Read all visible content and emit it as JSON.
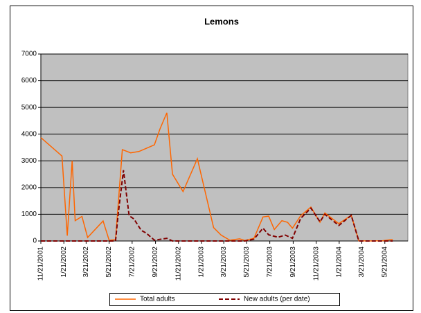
{
  "chart_data": {
    "type": "line",
    "title": "Lemons",
    "series": [
      {
        "name": "Total adults",
        "color": "#ff6600",
        "dash": false,
        "x": [
          "11/21/2001",
          "1/16/2002",
          "1/30/2002",
          "2/12/2002",
          "2/20/2002",
          "3/10/2002",
          "3/25/2002",
          "5/5/2002",
          "5/21/2002",
          "6/7/2002",
          "6/25/2002",
          "7/17/2002",
          "8/8/2002",
          "9/18/2002",
          "10/3/2002",
          "10/21/2002",
          "11/5/2002",
          "12/3/2002",
          "1/10/2003",
          "2/22/2003",
          "3/14/2003",
          "4/6/2003",
          "5/2/2003",
          "5/16/2003",
          "6/9/2003",
          "7/3/2003",
          "7/18/2003",
          "8/2/2003",
          "8/22/2003",
          "9/6/2003",
          "9/19/2003",
          "10/11/2003",
          "11/7/2003",
          "12/1/2003",
          "12/14/2003",
          "1/20/2004",
          "2/22/2004",
          "3/13/2004",
          "4/8/2004",
          "5/15/2004",
          "6/11/2004"
        ],
        "values": [
          3870,
          3180,
          200,
          3000,
          760,
          920,
          130,
          750,
          30,
          50,
          3420,
          3300,
          3350,
          3600,
          4200,
          4800,
          2500,
          1850,
          3080,
          500,
          220,
          30,
          80,
          20,
          100,
          900,
          930,
          430,
          760,
          700,
          480,
          950,
          1270,
          700,
          1050,
          650,
          960,
          10,
          0,
          10,
          60
        ]
      },
      {
        "name": "New adults (per date)",
        "color": "#800000",
        "dash": true,
        "x": [
          "11/21/2001",
          "1/16/2002",
          "5/21/2002",
          "6/7/2002",
          "6/14/2002",
          "6/28/2002",
          "7/13/2002",
          "7/26/2002",
          "8/14/2002",
          "8/27/2002",
          "9/18/2002",
          "10/21/2002",
          "11/5/2002",
          "5/16/2003",
          "6/9/2003",
          "7/3/2003",
          "7/18/2003",
          "8/12/2003",
          "8/31/2003",
          "9/19/2003",
          "10/11/2003",
          "11/7/2003",
          "12/1/2003",
          "12/14/2003",
          "1/20/2004",
          "2/22/2004",
          "3/13/2004",
          "6/11/2004"
        ],
        "values": [
          0,
          0,
          0,
          0,
          1000,
          2650,
          950,
          820,
          400,
          300,
          30,
          100,
          0,
          0,
          70,
          480,
          230,
          140,
          220,
          100,
          850,
          1230,
          720,
          1000,
          580,
          960,
          0,
          0
        ]
      }
    ],
    "xlim": [
      "11/21/2001",
      "7/21/2004"
    ],
    "xticks": [
      "11/21/2001",
      "1/21/2002",
      "3/21/2002",
      "5/21/2002",
      "7/21/2002",
      "9/21/2002",
      "11/21/2002",
      "1/21/2003",
      "3/21/2003",
      "5/21/2003",
      "7/21/2003",
      "9/21/2003",
      "11/21/2003",
      "1/21/2004",
      "3/21/2004",
      "5/21/2004"
    ],
    "ylim": [
      0,
      7000
    ],
    "yticks": [
      0,
      1000,
      2000,
      3000,
      4000,
      5000,
      6000,
      7000
    ],
    "grid": true
  }
}
